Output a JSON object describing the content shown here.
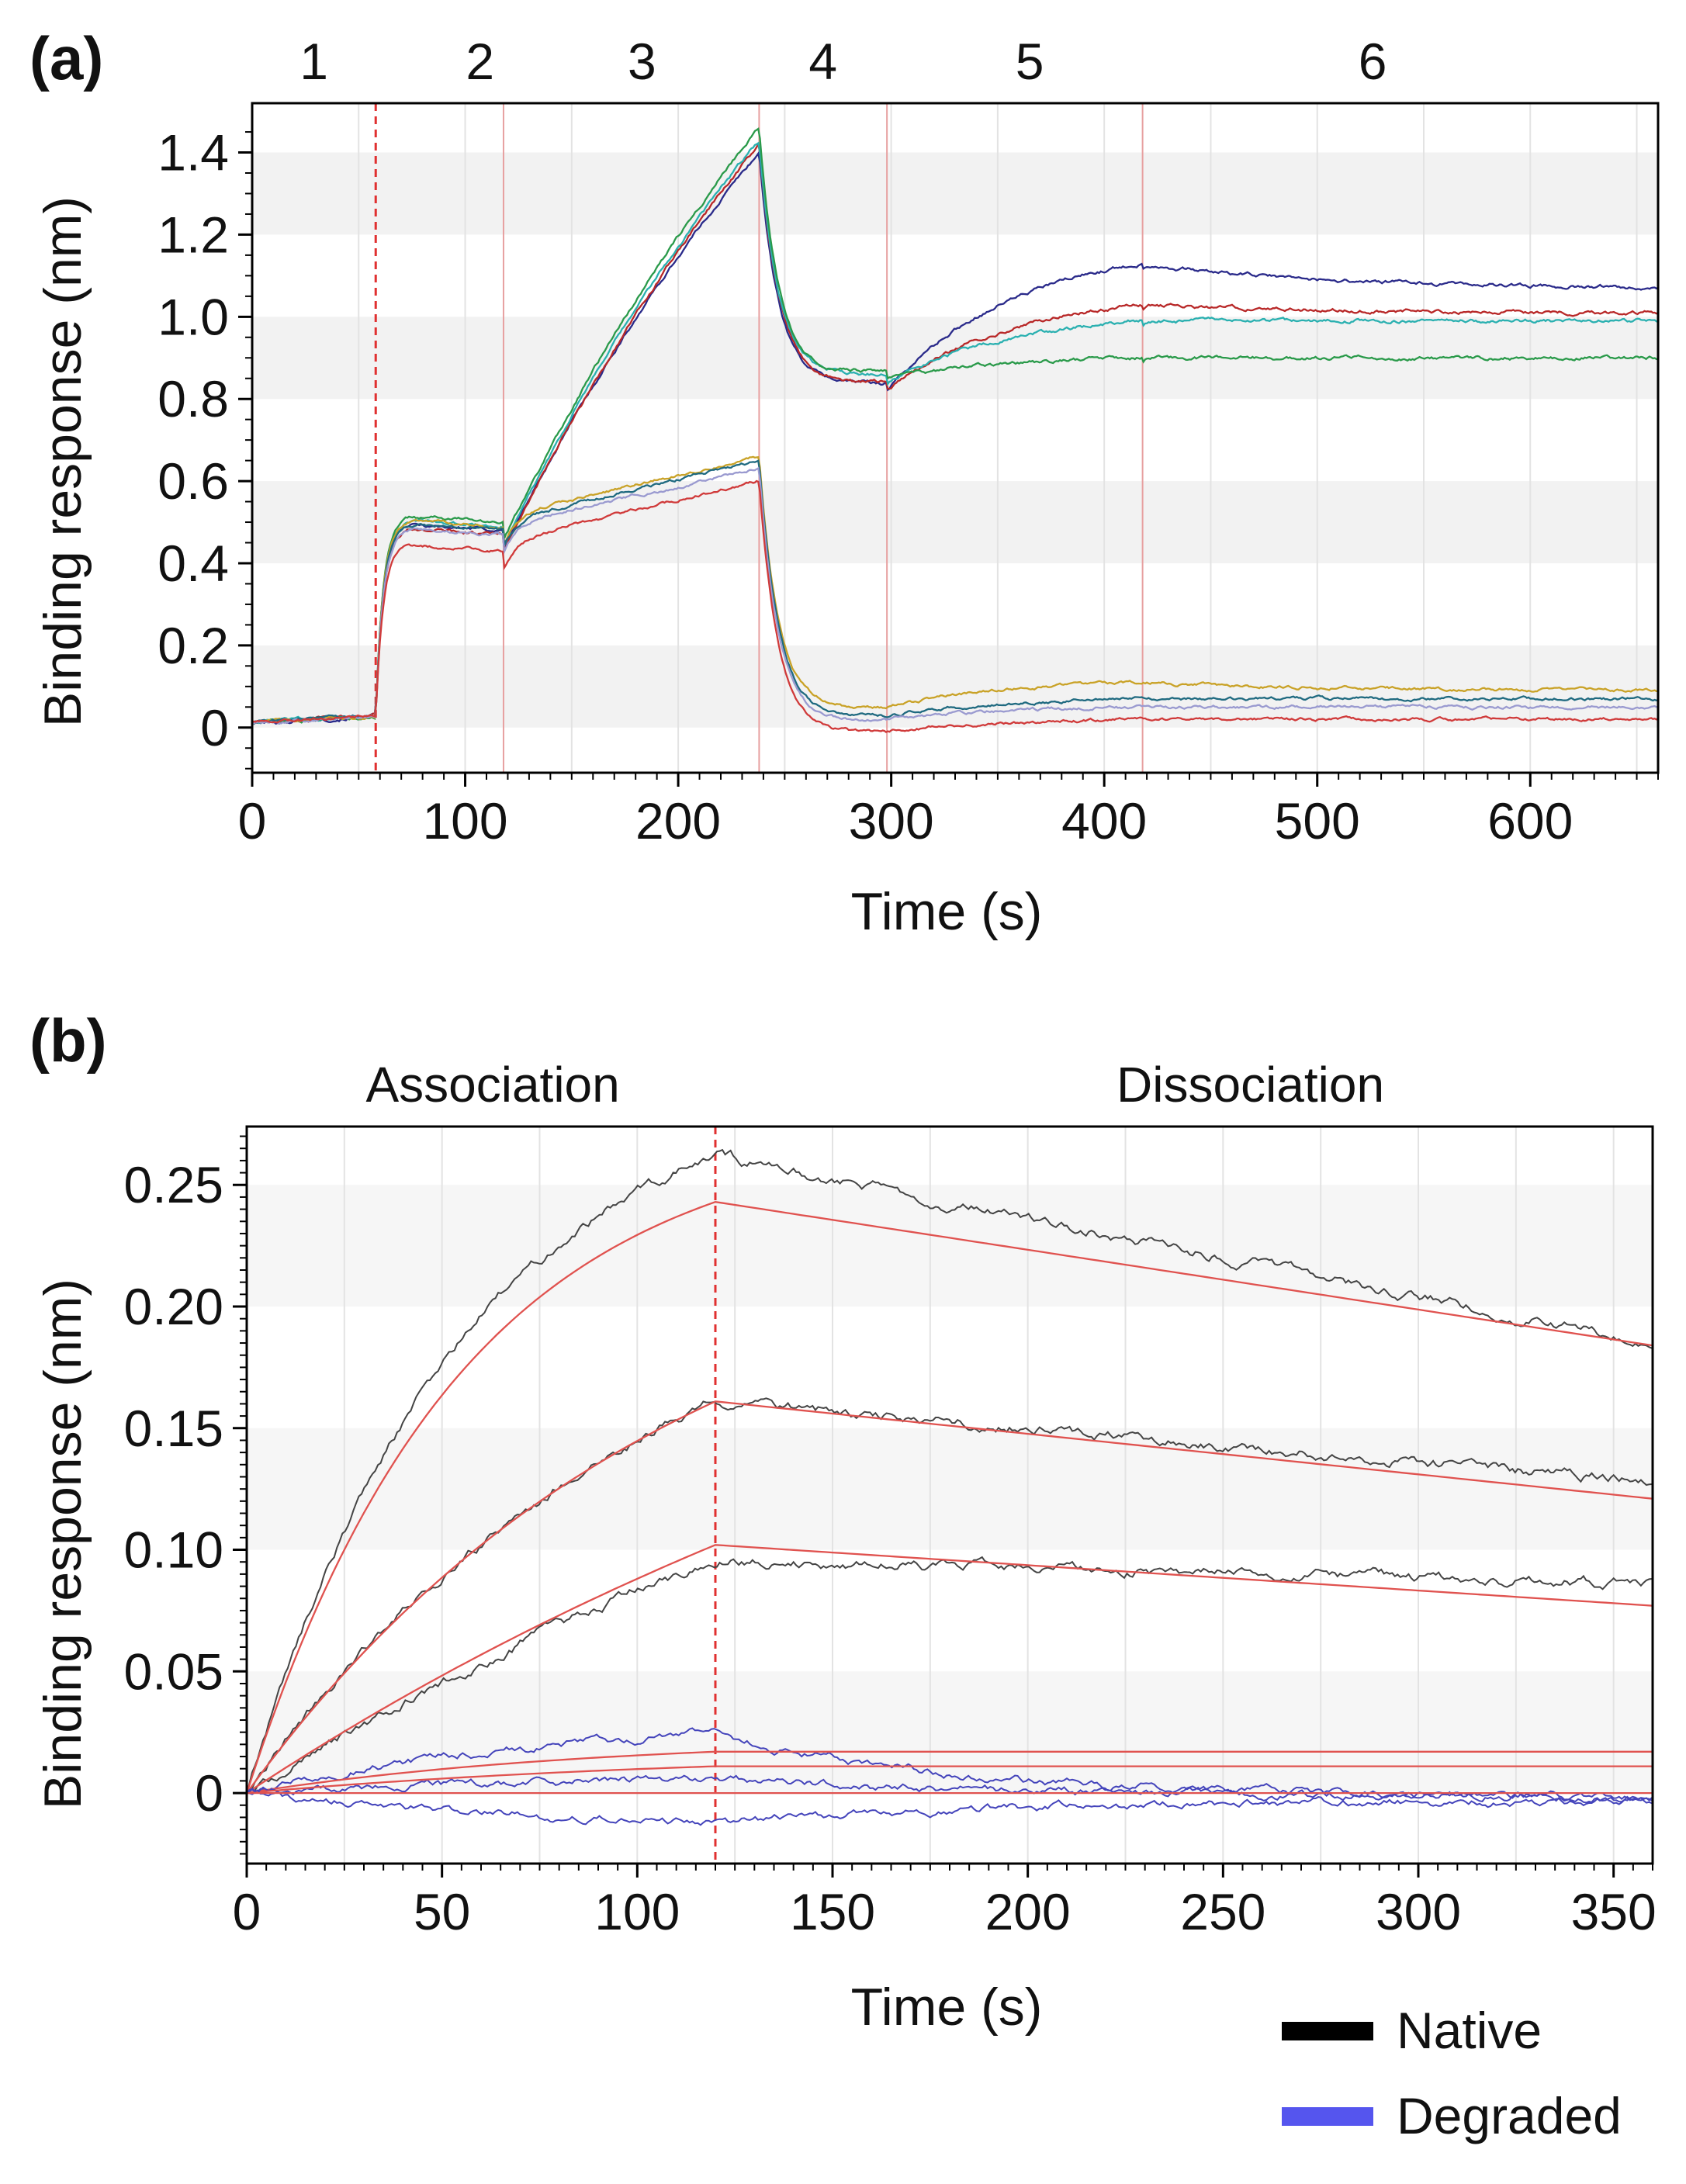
{
  "colors": {
    "background": "#ffffff",
    "band": "#f2f2f2",
    "grid": "#e3e3e3",
    "axis": "#000000",
    "fit": "#e0524f",
    "step_divider": "#e03030",
    "native": "#000000",
    "degraded": "#5555ee"
  },
  "chart_data": [
    {
      "type": "line",
      "panel_label": "(a)",
      "xlabel": "Time (s)",
      "ylabel": "Binding response (nm)",
      "xlim": [
        0,
        660
      ],
      "ylim": [
        -0.11,
        1.52
      ],
      "xticks": [
        0,
        100,
        200,
        300,
        400,
        500,
        600
      ],
      "yticks": [
        0,
        0.2,
        0.4,
        0.6,
        0.8,
        1.0,
        1.2,
        1.4
      ],
      "ytick_labels": [
        "0",
        "0.2",
        "0.4",
        "0.6",
        "0.8",
        "1.0",
        "1.2",
        "1.4"
      ],
      "step_boundaries": [
        58,
        118,
        238,
        298,
        418
      ],
      "step_labels": [
        {
          "label": "1",
          "x": 29
        },
        {
          "label": "2",
          "x": 107
        },
        {
          "label": "3",
          "x": 183
        },
        {
          "label": "4",
          "x": 268
        },
        {
          "label": "5",
          "x": 365
        },
        {
          "label": "6",
          "x": 526
        }
      ],
      "grid": true,
      "series": [
        {
          "name": "navy",
          "color": "#2a2a8a",
          "load": 0.48,
          "end3": 1.4,
          "low4": 0.83,
          "end4": 0.84,
          "end5": 1.13,
          "end6": 1.07
        },
        {
          "name": "red-high",
          "color": "#b82828",
          "load": 0.47,
          "end3": 1.42,
          "low4": 0.84,
          "end4": 0.84,
          "end5": 1.03,
          "end6": 1.01
        },
        {
          "name": "teal",
          "color": "#2ab0b0",
          "load": 0.49,
          "end3": 1.43,
          "low4": 0.85,
          "end4": 0.86,
          "end5": 0.99,
          "end6": 0.99
        },
        {
          "name": "green",
          "color": "#2a9a4a",
          "load": 0.5,
          "end3": 1.46,
          "low4": 0.85,
          "end4": 0.87,
          "end5": 0.9,
          "end6": 0.9
        },
        {
          "name": "gold",
          "color": "#c9a227",
          "load": 0.49,
          "end3": 0.66,
          "low4": 0.03,
          "end4": 0.05,
          "end5": 0.11,
          "end6": 0.09
        },
        {
          "name": "dark-teal",
          "color": "#1f6a80",
          "load": 0.48,
          "end3": 0.65,
          "low4": 0.01,
          "end4": 0.03,
          "end5": 0.07,
          "end6": 0.07
        },
        {
          "name": "lavender",
          "color": "#9a9ad0",
          "load": 0.47,
          "end3": 0.63,
          "low4": -0.01,
          "end4": 0.02,
          "end5": 0.05,
          "end6": 0.05
        },
        {
          "name": "red-low",
          "color": "#d03a3a",
          "load": 0.43,
          "end3": 0.6,
          "low4": -0.03,
          "end4": -0.01,
          "end5": 0.02,
          "end6": 0.02
        }
      ]
    },
    {
      "type": "line",
      "panel_label": "(b)",
      "xlabel": "Time (s)",
      "ylabel": "Binding response (nm)",
      "xlim": [
        0,
        360
      ],
      "ylim": [
        -0.029,
        0.274
      ],
      "xticks": [
        0,
        50,
        100,
        150,
        200,
        250,
        300,
        350
      ],
      "yticks": [
        0,
        0.05,
        0.1,
        0.15,
        0.2,
        0.25
      ],
      "ytick_labels": [
        "0",
        "0.05",
        "0.10",
        "0.15",
        "0.20",
        "0.25"
      ],
      "phase_boundary": 120,
      "phase_labels": [
        {
          "label": "Association",
          "x": 63
        },
        {
          "label": "Dissociation",
          "x": 257
        }
      ],
      "grid": true,
      "series": [
        {
          "name": "Native",
          "group": "native",
          "color": "#444444",
          "fit_peak": 0.243,
          "data_peak": 0.262,
          "fit_end": 0.184,
          "data_end": 0.185,
          "tau": 55
        },
        {
          "name": "Native",
          "group": "native",
          "color": "#444444",
          "fit_peak": 0.161,
          "data_peak": 0.161,
          "fit_end": 0.121,
          "data_end": 0.128,
          "tau": 110
        },
        {
          "name": "Native",
          "group": "native",
          "color": "#444444",
          "fit_peak": 0.102,
          "data_peak": 0.096,
          "fit_end": 0.077,
          "data_end": 0.086,
          "tau": 260
        },
        {
          "name": "Degraded",
          "group": "degraded",
          "color": "#4444bb",
          "fit_peak": 0.017,
          "data_peak": 0.025,
          "fit_end": 0.017,
          "data_end": -0.002,
          "tau": 90
        },
        {
          "name": "Degraded",
          "group": "degraded",
          "color": "#4444bb",
          "fit_peak": 0.011,
          "data_peak": 0.006,
          "fit_end": 0.011,
          "data_end": -0.001,
          "tau": 120
        },
        {
          "name": "Degraded",
          "group": "degraded",
          "color": "#4444bb",
          "fit_peak": 0.0,
          "data_peak": -0.013,
          "fit_end": 0.0,
          "data_end": -0.003,
          "tau": 120
        }
      ],
      "legend": {
        "position": "bottom-right",
        "entries": [
          {
            "label": "Native",
            "color": "#000000"
          },
          {
            "label": "Degraded",
            "color": "#5555ee"
          }
        ]
      }
    }
  ]
}
